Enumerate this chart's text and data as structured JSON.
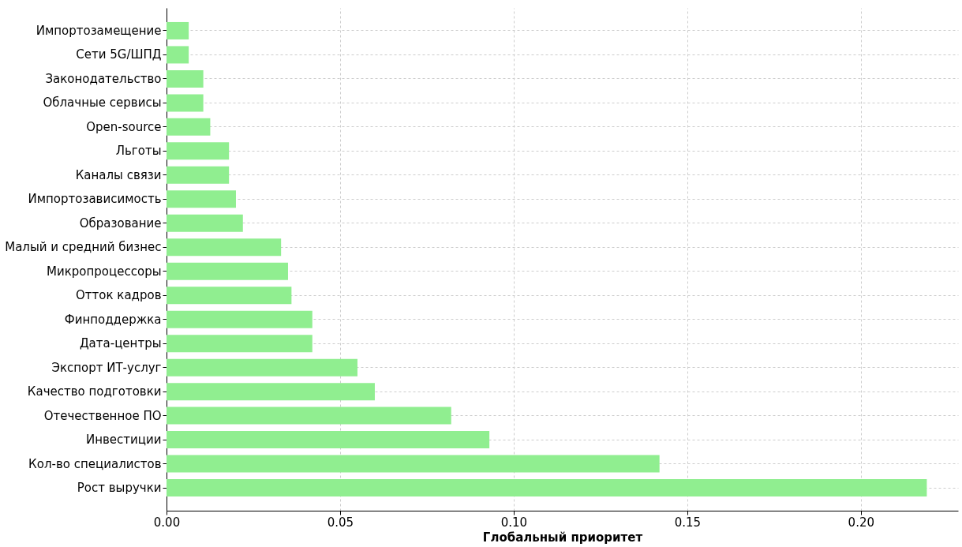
{
  "chart_data": {
    "type": "bar",
    "orientation": "horizontal",
    "xlabel": "Глобальный приоритет",
    "categories": [
      "Импортозамещение",
      "Сети 5G/ШПД",
      "Законодательство",
      "Облачные сервисы",
      "Open-source",
      "Льготы",
      "Каналы связи",
      "Импортозависимость",
      "Образование",
      "Малый и средний бизнес",
      "Микропроцессоры",
      "Отток кадров",
      "Финподдержка",
      "Дата-центры",
      "Экспорт ИТ-услуг",
      "Качество подготовки",
      "Отечественное ПО",
      "Инвестиции",
      "Кол-во специалистов",
      "Рост выручки"
    ],
    "values": [
      0.0064,
      0.0064,
      0.0106,
      0.0106,
      0.0126,
      0.018,
      0.018,
      0.02,
      0.022,
      0.033,
      0.035,
      0.036,
      0.042,
      0.042,
      0.055,
      0.06,
      0.082,
      0.093,
      0.142,
      0.219
    ],
    "color": "#90ee90",
    "xlim": [
      0,
      0.228
    ],
    "xticks": [
      {
        "value": 0,
        "label": "0.00"
      },
      {
        "value": 0.05,
        "label": "0.05"
      },
      {
        "value": 0.1,
        "label": "0.10"
      },
      {
        "value": 0.15,
        "label": "0.15"
      },
      {
        "value": 0.2,
        "label": "0.20"
      }
    ],
    "grid": true
  }
}
